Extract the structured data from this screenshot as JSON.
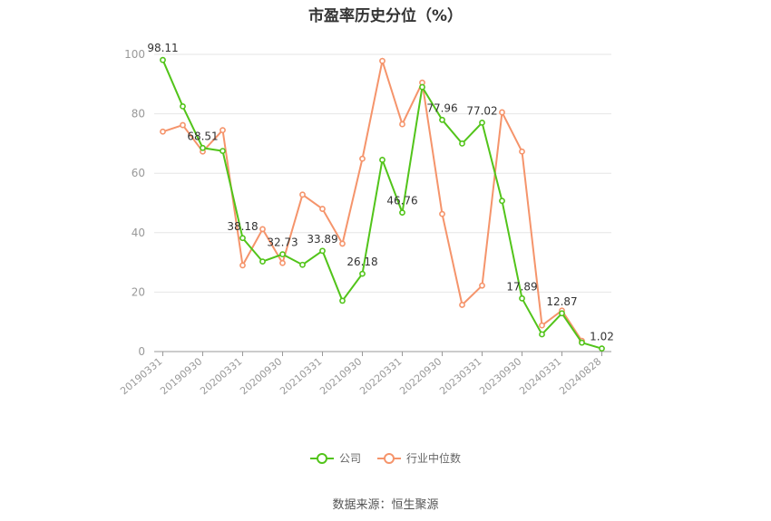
{
  "chart_data": {
    "type": "line",
    "title": "市盈率历史分位（%）",
    "x": [
      "20190331",
      "20190630",
      "20190930",
      "20191231",
      "20200331",
      "20200630",
      "20200930",
      "20201231",
      "20210331",
      "20210630",
      "20210930",
      "20211231",
      "20220331",
      "20220630",
      "20220930",
      "20221231",
      "20230331",
      "20230630",
      "20230930",
      "20231231",
      "20240331",
      "20240630",
      "20240828"
    ],
    "x_tick_labels": [
      "20190331",
      "20190930",
      "20200331",
      "20200930",
      "20210331",
      "20210930",
      "20220331",
      "20220930",
      "20230331",
      "20230930",
      "20240331",
      "20240828"
    ],
    "y_ticks": [
      0,
      20,
      40,
      60,
      80,
      100
    ],
    "ylim": [
      0,
      100
    ],
    "grid": true,
    "legend_position": "bottom",
    "series": [
      {
        "name": "公司",
        "color": "#52c41a",
        "values": [
          98.11,
          82.5,
          68.51,
          67.5,
          38.18,
          30.3,
          32.73,
          29.2,
          33.89,
          17.1,
          26.18,
          64.5,
          46.76,
          89.0,
          77.96,
          70.0,
          77.02,
          50.7,
          17.89,
          5.8,
          12.87,
          3.0,
          1.02
        ],
        "labels": {
          "0": "98.11",
          "2": "68.51",
          "4": "38.18",
          "6": "32.73",
          "8": "33.89",
          "10": "26.18",
          "12": "46.76",
          "14": "77.96",
          "16": "77.02",
          "18": "17.89",
          "20": "12.87",
          "22": "1.02"
        }
      },
      {
        "name": "行业中位数",
        "color": "#f5946b",
        "values": [
          74.0,
          76.2,
          67.3,
          74.5,
          29.0,
          41.2,
          29.8,
          52.8,
          48.0,
          36.3,
          64.9,
          97.8,
          76.5,
          90.5,
          46.3,
          15.7,
          22.2,
          80.5,
          67.3,
          8.8,
          13.8,
          3.6,
          null
        ]
      }
    ]
  },
  "legend": {
    "company": "公司",
    "industry": "行业中位数"
  },
  "source": "数据来源：恒生聚源"
}
